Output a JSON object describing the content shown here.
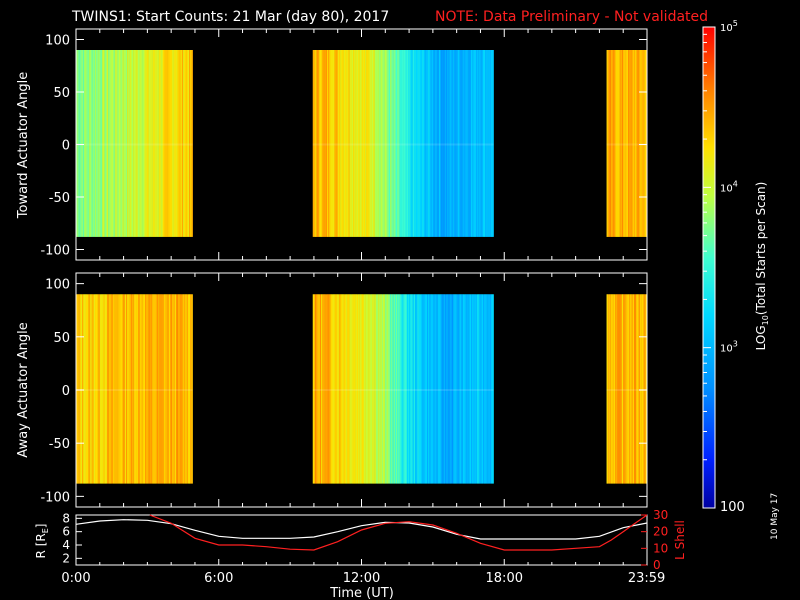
{
  "title": {
    "main": "TWINS1: Start Counts: 21 Mar (day  80), 2017",
    "note": "NOTE: Data Preliminary - Not validated",
    "note_color": "#ff2020"
  },
  "stamp": "10 May 17",
  "chart_data": [
    {
      "type": "heatmap",
      "panel": "toward",
      "ylabel": "Toward Actuator Angle",
      "ylim": [
        -110,
        110
      ],
      "yticks": [
        -100,
        -50,
        0,
        50,
        100
      ],
      "xlim_hours": [
        0,
        24
      ],
      "data_y_range": [
        -88,
        90
      ],
      "data_intervals_hours": [
        [
          0.0,
          4.9
        ],
        [
          9.95,
          17.55
        ],
        [
          22.3,
          24.0
        ]
      ],
      "log10_counts_profile": [
        {
          "hour": 0.5,
          "value": 3.8
        },
        {
          "hour": 2.5,
          "value": 4.0
        },
        {
          "hour": 4.5,
          "value": 4.3
        },
        {
          "hour": 10.5,
          "value": 4.4
        },
        {
          "hour": 12.5,
          "value": 4.1
        },
        {
          "hour": 14.0,
          "value": 3.3
        },
        {
          "hour": 15.5,
          "value": 2.9
        },
        {
          "hour": 17.0,
          "value": 3.1
        },
        {
          "hour": 23.0,
          "value": 4.4
        }
      ]
    },
    {
      "type": "heatmap",
      "panel": "away",
      "ylabel": "Away Actuator Angle",
      "ylim": [
        -110,
        110
      ],
      "yticks": [
        -100,
        -50,
        0,
        50,
        100
      ],
      "xlim_hours": [
        0,
        24
      ],
      "data_y_range": [
        -88,
        90
      ],
      "data_intervals_hours": [
        [
          0.0,
          4.9
        ],
        [
          9.95,
          17.55
        ],
        [
          22.3,
          24.0
        ]
      ],
      "log10_counts_profile": [
        {
          "hour": 0.5,
          "value": 4.3
        },
        {
          "hour": 2.5,
          "value": 4.4
        },
        {
          "hour": 4.5,
          "value": 4.4
        },
        {
          "hour": 10.5,
          "value": 4.4
        },
        {
          "hour": 12.5,
          "value": 4.1
        },
        {
          "hour": 14.0,
          "value": 3.3
        },
        {
          "hour": 15.5,
          "value": 2.9
        },
        {
          "hour": 17.0,
          "value": 3.1
        },
        {
          "hour": 23.0,
          "value": 4.4
        }
      ]
    },
    {
      "type": "line",
      "panel": "orbit",
      "xlabel": "Time (UT)",
      "xticks": [
        "0:00",
        "6:00",
        "12:00",
        "18:00",
        "23:59"
      ],
      "ylabel_left": "R [R",
      "ylabel_left_sub": "E",
      "ylabel_left_end": "]",
      "ylim_left": [
        1,
        8.5
      ],
      "yticks_left": [
        2,
        4,
        6,
        8
      ],
      "ylabel_right": "L Shell",
      "ylim_right": [
        0,
        30
      ],
      "yticks_right": [
        0,
        10,
        20,
        30
      ],
      "right_color": "#ff2020",
      "series": [
        {
          "axis": "left",
          "color": "#ffffff",
          "x_hours": [
            0,
            1,
            2,
            3,
            4,
            5,
            6,
            7,
            8,
            9,
            10,
            11,
            12,
            13,
            14,
            15,
            16,
            17,
            18,
            19,
            20,
            21,
            22,
            23,
            24
          ],
          "values": [
            7.1,
            7.6,
            7.8,
            7.7,
            7.2,
            6.2,
            5.3,
            5.0,
            5.0,
            5.0,
            5.2,
            6.0,
            6.9,
            7.4,
            7.3,
            6.7,
            5.6,
            4.9,
            4.9,
            4.9,
            4.9,
            4.9,
            5.3,
            6.6,
            7.3
          ]
        },
        {
          "axis": "right",
          "color": "#ff2020",
          "x_hours": [
            3.1,
            4.0,
            5.0,
            6.0,
            7.0,
            8.0,
            9.0,
            10.0,
            11.0,
            12.0,
            13.0,
            14.0,
            15.0,
            16.0,
            17.0,
            18.0,
            19.0,
            20.0,
            21.0,
            22.0,
            22.5,
            23.0,
            23.5,
            24.0
          ],
          "values": [
            30,
            25,
            16,
            12,
            12,
            11,
            9.5,
            9,
            14,
            21,
            25,
            26,
            24,
            19,
            13,
            9,
            9,
            9,
            10,
            11,
            15,
            20,
            25,
            30
          ]
        }
      ]
    }
  ],
  "colorbar": {
    "label": "LOG",
    "label_sub": "10",
    "label_rest": "(Total Starts per Scan)",
    "min_label": "100",
    "tick_labels": [
      {
        "value": 3,
        "base": "10",
        "exp": "3"
      },
      {
        "value": 4,
        "base": "10",
        "exp": "4"
      },
      {
        "value": 5,
        "base": "10",
        "exp": "5"
      }
    ],
    "range_log10": [
      2,
      5
    ]
  }
}
